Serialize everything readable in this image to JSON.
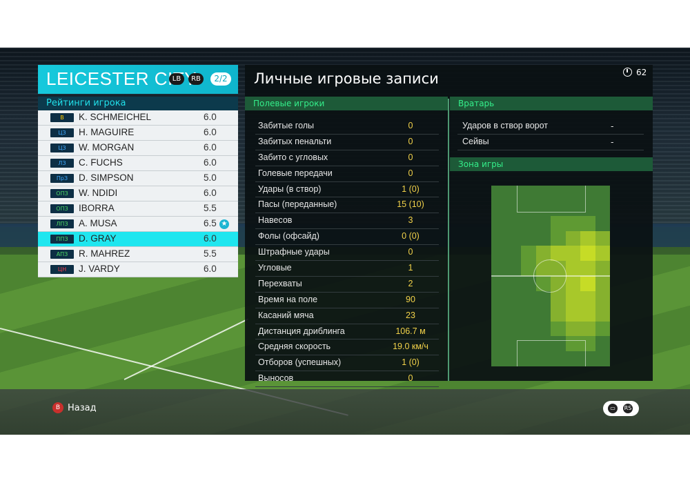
{
  "team": {
    "name": "LEICESTER CITY",
    "lb_label": "LB",
    "rb_label": "RB",
    "page": "2/2",
    "ratings_title": "Рейтинги игрока"
  },
  "players": [
    {
      "pos": "В",
      "pos_color": "#ffcc00",
      "name": "K. SCHMEICHEL",
      "rating": "6.0"
    },
    {
      "pos": "ЦЗ",
      "pos_color": "#3fa9ff",
      "name": "H. MAGUIRE",
      "rating": "6.0"
    },
    {
      "pos": "ЦЗ",
      "pos_color": "#3fa9ff",
      "name": "W. MORGAN",
      "rating": "6.0"
    },
    {
      "pos": "ЛЗ",
      "pos_color": "#3fa9ff",
      "name": "C. FUCHS",
      "rating": "6.0"
    },
    {
      "pos": "ПрЗ",
      "pos_color": "#3fa9ff",
      "name": "D. SIMPSON",
      "rating": "5.0"
    },
    {
      "pos": "ОПЗ",
      "pos_color": "#4cd964",
      "name": "W. NDIDI",
      "rating": "6.0"
    },
    {
      "pos": "ОПЗ",
      "pos_color": "#4cd964",
      "name": "IBORRA",
      "rating": "5.5"
    },
    {
      "pos": "ЛПЗ",
      "pos_color": "#4cd964",
      "name": "A. MUSA",
      "rating": "6.5",
      "star": true
    },
    {
      "pos": "ППЗ",
      "pos_color": "#4cd964",
      "name": "D. GRAY",
      "rating": "6.0",
      "selected": true
    },
    {
      "pos": "АПЗ",
      "pos_color": "#4cd964",
      "name": "R. MAHREZ",
      "rating": "5.5"
    },
    {
      "pos": "ЦН",
      "pos_color": "#ff3b4a",
      "name": "J. VARDY",
      "rating": "6.0"
    }
  ],
  "main": {
    "title": "Личные игровые записи",
    "timer": "62",
    "field_players_title": "Полевые игроки",
    "goalkeeper_title": "Вратарь",
    "zone_title": "Зона игры"
  },
  "stats": [
    {
      "label": "Забитые голы",
      "value": "0"
    },
    {
      "label": "Забитых пенальти",
      "value": "0"
    },
    {
      "label": "Забито с угловых",
      "value": "0"
    },
    {
      "label": "Голевые передачи",
      "value": "0"
    },
    {
      "label": "Удары (в створ)",
      "value": "1 (0)"
    },
    {
      "label": "Пасы (переданные)",
      "value": "15 (10)"
    },
    {
      "label": "Навесов",
      "value": "3"
    },
    {
      "label": "Фолы (офсайд)",
      "value": "0 (0)"
    },
    {
      "label": "Штрафные удары",
      "value": "0"
    },
    {
      "label": "Угловые",
      "value": "1"
    },
    {
      "label": "Перехваты",
      "value": "2"
    },
    {
      "label": "Время на поле",
      "value": "90"
    },
    {
      "label": "Касаний мяча",
      "value": "23"
    },
    {
      "label": "Дистанция дриблинга",
      "value": "106.7 м"
    },
    {
      "label": "Средняя скорость",
      "value": "19.0 км/ч"
    },
    {
      "label": "Отборов (успешных)",
      "value": "1 (0)"
    },
    {
      "label": "Выносов",
      "value": "0"
    }
  ],
  "gk_stats": [
    {
      "label": "Ударов в створ ворот",
      "value": "-"
    },
    {
      "label": "Сейвы",
      "value": "-"
    }
  ],
  "heatmap": {
    "cols": 8,
    "rows": 12,
    "colors": {
      "0": "#3f7a34",
      "1": "#5f9a33",
      "2": "#86b12e",
      "3": "#a8c82a",
      "4": "#c6dc26"
    },
    "grid": [
      [
        0,
        0,
        0,
        0,
        0,
        0,
        0,
        0
      ],
      [
        0,
        0,
        0,
        0,
        0,
        0,
        0,
        0
      ],
      [
        0,
        0,
        0,
        0,
        1,
        1,
        1,
        0
      ],
      [
        0,
        0,
        0,
        0,
        1,
        2,
        3,
        2
      ],
      [
        0,
        0,
        1,
        2,
        3,
        3,
        4,
        3
      ],
      [
        0,
        0,
        1,
        2,
        2,
        3,
        3,
        2
      ],
      [
        0,
        0,
        0,
        1,
        2,
        3,
        4,
        2
      ],
      [
        0,
        0,
        0,
        0,
        2,
        3,
        3,
        2
      ],
      [
        0,
        0,
        0,
        0,
        2,
        3,
        3,
        2
      ],
      [
        0,
        0,
        0,
        0,
        1,
        2,
        2,
        1
      ],
      [
        0,
        0,
        0,
        0,
        0,
        1,
        1,
        0
      ],
      [
        0,
        0,
        0,
        0,
        0,
        0,
        0,
        0
      ]
    ]
  },
  "controls": {
    "back_button": "B",
    "back_label": "Назад",
    "rs_label": "RS"
  }
}
